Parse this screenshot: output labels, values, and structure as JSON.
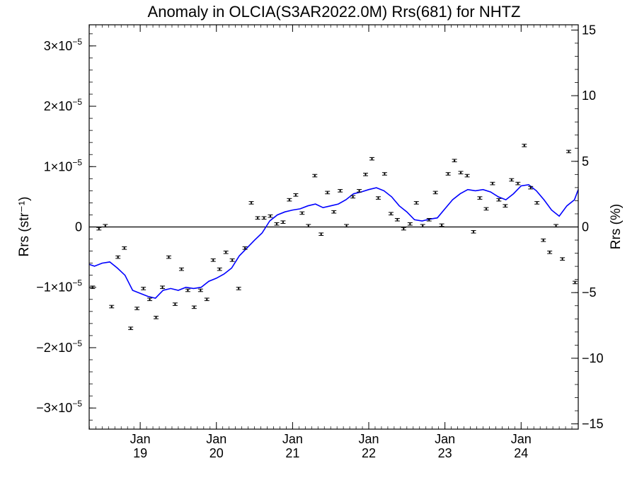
{
  "chart_data": {
    "type": "scatter",
    "title": "Anomaly in OLCIA(S3AR2022.0M) Rrs(681) for NHTZ",
    "ylabel": "Rrs (str⁻¹)",
    "ylabel_right": "Rrs (%)",
    "xlim": [
      2018.33,
      2024.75
    ],
    "ylim": [
      -3.35e-05,
      3.35e-05
    ],
    "ylim_right": [
      -15.4,
      15.4
    ],
    "x_ticks": [
      {
        "x": 2019.0,
        "label_top": "Jan",
        "label_bottom": "19"
      },
      {
        "x": 2020.0,
        "label_top": "Jan",
        "label_bottom": "20"
      },
      {
        "x": 2021.0,
        "label_top": "Jan",
        "label_bottom": "21"
      },
      {
        "x": 2022.0,
        "label_top": "Jan",
        "label_bottom": "22"
      },
      {
        "x": 2023.0,
        "label_top": "Jan",
        "label_bottom": "23"
      },
      {
        "x": 2024.0,
        "label_top": "Jan",
        "label_bottom": "24"
      }
    ],
    "y_ticks_left": [
      {
        "value": 3e-05,
        "mantissa": "3×10",
        "exp": "−5"
      },
      {
        "value": 2e-05,
        "mantissa": "2×10",
        "exp": "−5"
      },
      {
        "value": 1e-05,
        "mantissa": "1×10",
        "exp": "−5"
      },
      {
        "value": 0,
        "mantissa": "0",
        "exp": ""
      },
      {
        "value": -1e-05,
        "mantissa": "−1×10",
        "exp": "−5"
      },
      {
        "value": -2e-05,
        "mantissa": "−2×10",
        "exp": "−5"
      },
      {
        "value": -3e-05,
        "mantissa": "−3×10",
        "exp": "−5"
      }
    ],
    "y_ticks_right": [
      {
        "value": 15,
        "label": "15"
      },
      {
        "value": 10,
        "label": "10"
      },
      {
        "value": 5,
        "label": "5"
      },
      {
        "value": 0,
        "label": "0"
      },
      {
        "value": -5,
        "label": "−5"
      },
      {
        "value": -10,
        "label": "−10"
      },
      {
        "value": -15,
        "label": "−15"
      }
    ],
    "zero_line": true,
    "grid": false,
    "series": [
      {
        "style": "points-with-errorbars",
        "color": "#000000",
        "x": [
          2018.375,
          2018.458,
          2018.542,
          2018.625,
          2018.708,
          2018.792,
          2018.875,
          2018.958,
          2019.042,
          2019.125,
          2019.208,
          2019.292,
          2019.375,
          2019.458,
          2019.542,
          2019.625,
          2019.708,
          2019.792,
          2019.875,
          2019.958,
          2020.042,
          2020.125,
          2020.208,
          2020.292,
          2020.375,
          2020.458,
          2020.542,
          2020.625,
          2020.708,
          2020.792,
          2020.875,
          2020.958,
          2021.042,
          2021.125,
          2021.208,
          2021.292,
          2021.375,
          2021.458,
          2021.542,
          2021.625,
          2021.708,
          2021.792,
          2021.875,
          2021.958,
          2022.042,
          2022.125,
          2022.208,
          2022.292,
          2022.375,
          2022.458,
          2022.542,
          2022.625,
          2022.708,
          2022.792,
          2022.875,
          2022.958,
          2023.042,
          2023.125,
          2023.208,
          2023.292,
          2023.375,
          2023.458,
          2023.542,
          2023.625,
          2023.708,
          2023.792,
          2023.875,
          2023.958,
          2024.042,
          2024.125,
          2024.208,
          2024.292,
          2024.375,
          2024.458,
          2024.542,
          2024.625,
          2024.708
        ],
        "y": [
          -1e-05,
          -3e-07,
          2e-07,
          -1.32e-05,
          -5e-06,
          -3.5e-06,
          -1.68e-05,
          -1.35e-05,
          -1.02e-05,
          -1.2e-05,
          -1.5e-05,
          -1e-05,
          -5e-06,
          -1.28e-05,
          -7e-06,
          -1.05e-05,
          -1.33e-05,
          -1.05e-05,
          -1.2e-05,
          -5.5e-06,
          -7e-06,
          -4.2e-06,
          -5.5e-06,
          -1.02e-05,
          -3.5e-06,
          4e-06,
          1.5e-06,
          1.5e-06,
          1.8e-06,
          5e-07,
          8e-07,
          4.5e-06,
          5.3e-06,
          2.3e-06,
          2e-07,
          8.5e-06,
          -1.2e-06,
          5.7e-06,
          2.5e-06,
          6e-06,
          2e-07,
          5e-06,
          6e-06,
          8.7e-06,
          1.13e-05,
          4.8e-06,
          8.8e-06,
          2.2e-06,
          1.2e-06,
          -3e-07,
          5e-07,
          4e-06,
          2e-07,
          1.2e-06,
          5.7e-06,
          3e-07,
          8.8e-06,
          1.1e-05,
          9e-06,
          8.5e-06,
          -8e-07,
          4.8e-06,
          3e-06,
          7.2e-06,
          4.5e-06,
          3.5e-06,
          7.8e-06,
          7.2e-06,
          1.35e-05,
          6.5e-06,
          4e-06,
          -2.2e-06,
          -4.2e-06,
          2e-07,
          -5.3e-06,
          1.25e-05,
          -9.2e-06
        ]
      },
      {
        "style": "line",
        "color": "#0000ff",
        "x": [
          2018.33,
          2018.4,
          2018.5,
          2018.6,
          2018.7,
          2018.8,
          2018.9,
          2019.0,
          2019.1,
          2019.2,
          2019.3,
          2019.4,
          2019.5,
          2019.6,
          2019.7,
          2019.8,
          2019.9,
          2020.0,
          2020.1,
          2020.2,
          2020.3,
          2020.4,
          2020.5,
          2020.6,
          2020.7,
          2020.8,
          2020.9,
          2021.0,
          2021.1,
          2021.2,
          2021.3,
          2021.4,
          2021.5,
          2021.6,
          2021.7,
          2021.8,
          2021.9,
          2022.0,
          2022.1,
          2022.2,
          2022.3,
          2022.4,
          2022.5,
          2022.6,
          2022.7,
          2022.8,
          2022.9,
          2023.0,
          2023.1,
          2023.2,
          2023.3,
          2023.4,
          2023.5,
          2023.6,
          2023.7,
          2023.8,
          2023.9,
          2024.0,
          2024.1,
          2024.2,
          2024.3,
          2024.4,
          2024.5,
          2024.6,
          2024.7,
          2024.75
        ],
        "y": [
          -6.2e-06,
          -6.5e-06,
          -6e-06,
          -5.8e-06,
          -6.8e-06,
          -8e-06,
          -1.05e-05,
          -1.1e-05,
          -1.15e-05,
          -1.18e-05,
          -1.05e-05,
          -1.02e-05,
          -1.05e-05,
          -1e-05,
          -1.02e-05,
          -1e-05,
          -9e-06,
          -8.5e-06,
          -7.8e-06,
          -6.8e-06,
          -4.8e-06,
          -3.5e-06,
          -2.2e-06,
          -1e-06,
          1e-06,
          2e-06,
          2.5e-06,
          2.8e-06,
          3e-06,
          3.5e-06,
          3.8e-06,
          3.2e-06,
          3.5e-06,
          3.8e-06,
          4.5e-06,
          5.5e-06,
          5.8e-06,
          6.2e-06,
          6.5e-06,
          6e-06,
          5e-06,
          3.5e-06,
          2.5e-06,
          1.2e-06,
          1e-06,
          1.3e-06,
          1.5e-06,
          3e-06,
          4.5e-06,
          5.5e-06,
          6.2e-06,
          6e-06,
          6.2e-06,
          5.8e-06,
          5e-06,
          4.5e-06,
          5.5e-06,
          6.8e-06,
          7e-06,
          6e-06,
          4.5e-06,
          2.8e-06,
          1.8e-06,
          3.5e-06,
          4.5e-06,
          6.2e-06
        ]
      }
    ]
  }
}
